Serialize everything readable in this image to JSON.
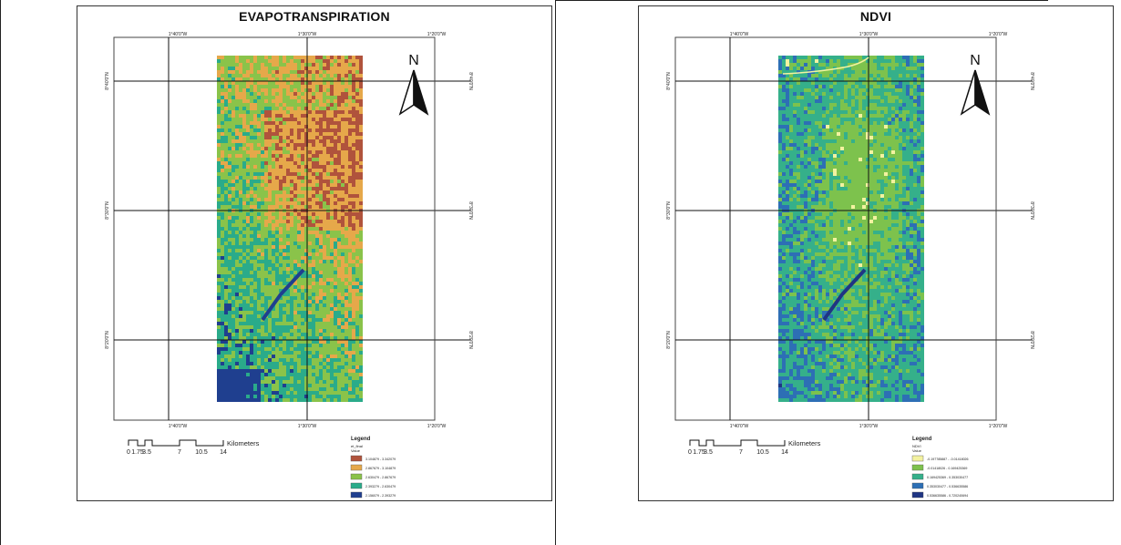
{
  "maps": [
    {
      "id": "et",
      "title": "EVAPOTRANSPIRATION",
      "north_label": "N",
      "lon_labels": [
        "1°40'0\"W",
        "1°30'0\"W",
        "1°20'0\"W"
      ],
      "lat_labels": [
        "8°40'0\"N",
        "8°30'0\"N",
        "8°20'0\"N"
      ],
      "scale": {
        "ticks": [
          "0",
          "1.75",
          "3.5",
          "7",
          "10.5",
          "14"
        ],
        "unit": "Kilometers"
      },
      "legend": {
        "title": "Legend",
        "subtitle": "et_final",
        "sub2": "Value",
        "classes": [
          {
            "label": "3.104879 - 3.342079",
            "color": "#b0533c"
          },
          {
            "label": "2.867679 - 3.104879",
            "color": "#e6a84a"
          },
          {
            "label": "2.630479 - 2.867679",
            "color": "#8ac34a"
          },
          {
            "label": "2.393279 - 2.630479",
            "color": "#2aab8a"
          },
          {
            "label": "2.156079 - 2.393279",
            "color": "#1f3f8f"
          }
        ]
      }
    },
    {
      "id": "ndvi",
      "title": "NDVI",
      "north_label": "N",
      "lon_labels": [
        "1°40'0\"W",
        "1°30'0\"W",
        "1°20'0\"W"
      ],
      "lat_labels": [
        "8°40'0\"N",
        "8°30'0\"N",
        "8°20'0\"N"
      ],
      "scale": {
        "ticks": [
          "0",
          "1.75",
          "3.5",
          "7",
          "10.5",
          "14"
        ],
        "unit": "Kilometers"
      },
      "legend": {
        "title": "Legend",
        "subtitle": "NDVI",
        "sub2": "Value",
        "classes": [
          {
            "label": "-0.197785887 - -0.01418026",
            "color": "#f3f2a0"
          },
          {
            "label": "-0.01418026 - 0.169425369",
            "color": "#7dc24d"
          },
          {
            "label": "0.169425369 - 0.353030477",
            "color": "#35b08a"
          },
          {
            "label": "0.353030477 - 0.536635586",
            "color": "#2d6fb5"
          },
          {
            "label": "0.536635586 - 0.720240694",
            "color": "#1f3584"
          }
        ]
      }
    }
  ]
}
